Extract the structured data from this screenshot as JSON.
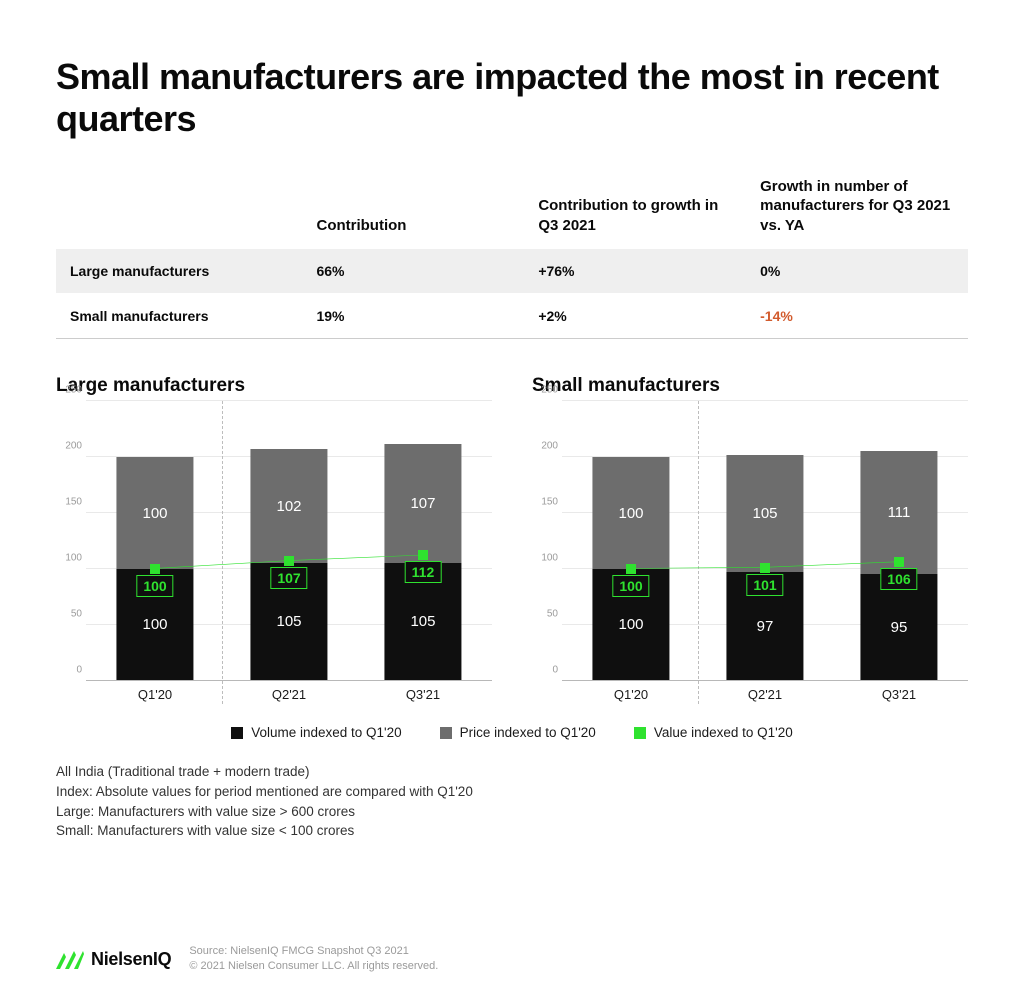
{
  "title": "Small manufacturers are impacted the most in recent quarters",
  "table": {
    "headers": {
      "blank": "",
      "contribution": "Contribution",
      "growth_q3": "Contribution to growth in Q3 2021",
      "mfr_growth": "Growth in number of manufacturers for Q3 2021 vs. YA"
    },
    "rows": [
      {
        "label": "Large manufacturers",
        "contribution": "66%",
        "growth_q3": "+76%",
        "mfr_growth": "0%",
        "mfr_neg": false,
        "shaded": true
      },
      {
        "label": "Small manufacturers",
        "contribution": "19%",
        "growth_q3": "+2%",
        "mfr_growth": "-14%",
        "mfr_neg": true,
        "shaded": false
      }
    ]
  },
  "chart_settings": {
    "ylim": [
      0,
      250
    ],
    "yticks": [
      0,
      50,
      100,
      150,
      200,
      250
    ],
    "categories": [
      "Q1'20",
      "Q2'21",
      "Q3'21"
    ],
    "xpositions_pct": [
      17,
      50,
      83
    ],
    "divider_after_index": 0,
    "bar_width_pct": 19,
    "colors": {
      "volume": "#0f0f0f",
      "price": "#6d6d6d",
      "value_line": "#2fe22f",
      "value_marker": "#2fe22f",
      "background": "#ffffff",
      "grid": "#e9e9e9",
      "axis": "#b8b8b8",
      "tick_text": "#9b9b9b",
      "neg_text": "#d25b2d"
    },
    "label_fontsize": 15,
    "tick_fontsize": 10
  },
  "charts": [
    {
      "title": "Large manufacturers",
      "volume": [
        100,
        105,
        105
      ],
      "price": [
        100,
        102,
        107
      ],
      "value": [
        100,
        107,
        112
      ]
    },
    {
      "title": "Small manufacturers",
      "volume": [
        100,
        97,
        95
      ],
      "price": [
        100,
        105,
        111
      ],
      "value": [
        100,
        101,
        106
      ]
    }
  ],
  "legend": [
    {
      "label": "Volume indexed to Q1'20",
      "color_key": "volume"
    },
    {
      "label": "Price indexed to Q1'20",
      "color_key": "price"
    },
    {
      "label": "Value indexed to Q1'20",
      "color_key": "value_marker"
    }
  ],
  "footnotes": [
    "All India (Traditional trade + modern trade)",
    "Index: Absolute values for period mentioned are compared with Q1'20",
    "Large: Manufacturers with value size > 600 crores",
    "Small: Manufacturers with value size < 100 crores"
  ],
  "footer": {
    "brand": "NielsenIQ",
    "source": "Source: NielsenIQ FMCG Snapshot Q3 2021",
    "copyright": "© 2021 Nielsen Consumer LLC. All rights reserved."
  }
}
